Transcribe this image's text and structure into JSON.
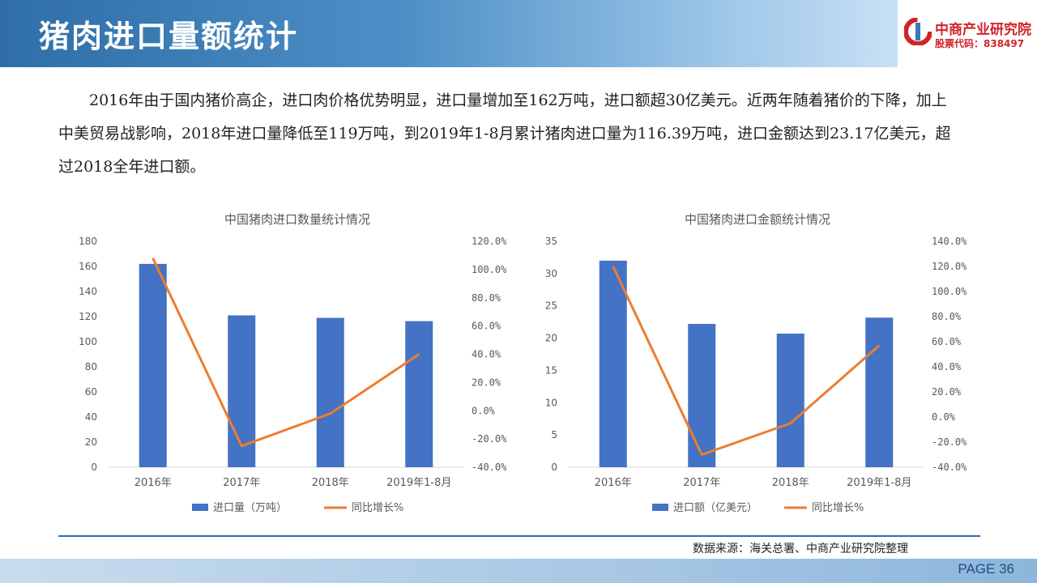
{
  "header": {
    "title": "猪肉进口量额统计",
    "logo_name": "中商产业研究院",
    "logo_stock": "股票代码：838497"
  },
  "intro_text": "2016年由于国内猪价高企，进口肉价格优势明显，进口量增加至162万吨，进口额超30亿美元。近两年随着猪价的下降，加上中美贸易战影响，2018年进口量降低至119万吨，到2019年1-8月累计猪肉进口量为116.39万吨，进口金额达到23.17亿美元，超过2018全年进口额。",
  "chart_data": [
    {
      "type": "bar",
      "title": "中国猪肉进口数量统计情况",
      "categories": [
        "2016年",
        "2017年",
        "2018年",
        "2019年1-8月"
      ],
      "series": [
        {
          "name": "进口量（万吨）",
          "axis": "left",
          "values": [
            162,
            121,
            119,
            116.39
          ],
          "color": "#4472c4"
        },
        {
          "name": "同比增长%",
          "axis": "right",
          "type": "line",
          "values": [
            108,
            -25,
            -2,
            40
          ],
          "color": "#ed7d31"
        }
      ],
      "ylim": [
        0,
        180
      ],
      "yticks": [
        0,
        20,
        40,
        60,
        80,
        100,
        120,
        140,
        160,
        180
      ],
      "y2lim": [
        -40,
        120
      ],
      "y2ticks": [
        "120.0%",
        "100.0%",
        "80.0%",
        "60.0%",
        "40.0%",
        "20.0%",
        "0.0%",
        "-20.0%",
        "-40.0%"
      ],
      "grid": false,
      "legend": "bottom"
    },
    {
      "type": "bar",
      "title": "中国猪肉进口金额统计情况",
      "categories": [
        "2016年",
        "2017年",
        "2018年",
        "2019年1-8月"
      ],
      "series": [
        {
          "name": "进口额（亿美元）",
          "axis": "left",
          "values": [
            32,
            22.2,
            20.7,
            23.17
          ],
          "color": "#4472c4"
        },
        {
          "name": "同比增长%",
          "axis": "right",
          "type": "line",
          "values": [
            120,
            -30,
            -5,
            57
          ],
          "color": "#ed7d31"
        }
      ],
      "ylim": [
        0,
        35
      ],
      "yticks": [
        0,
        5,
        10,
        15,
        20,
        25,
        30,
        35
      ],
      "y2lim": [
        -40,
        140
      ],
      "y2ticks": [
        "140.0%",
        "120.0%",
        "100.0%",
        "80.0%",
        "60.0%",
        "40.0%",
        "20.0%",
        "0.0%",
        "-20.0%",
        "-40.0%"
      ],
      "grid": false,
      "legend": "bottom"
    }
  ],
  "footer": {
    "source": "数据来源：海关总署、中商产业研究院整理",
    "page": "PAGE 36"
  }
}
